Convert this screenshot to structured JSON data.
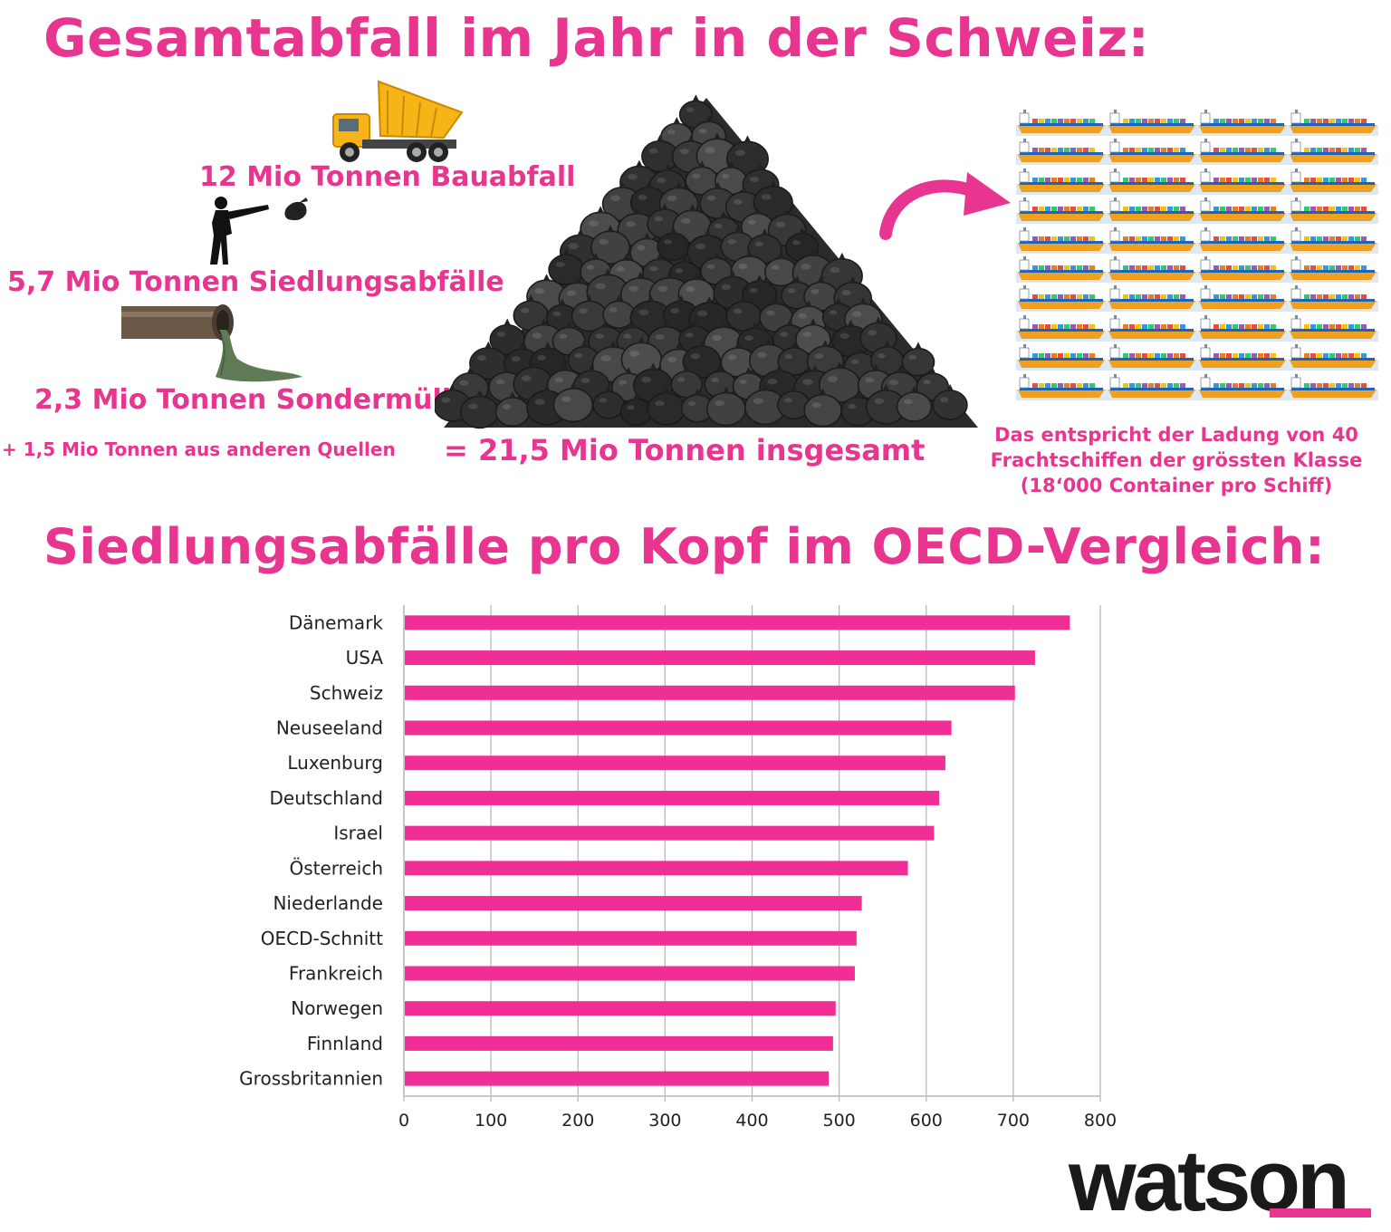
{
  "section1": {
    "title": "Gesamtabfall im Jahr in der Schweiz:",
    "items": [
      {
        "label": "12 Mio Tonnen Bauabfall",
        "icon": "dump-truck-icon"
      },
      {
        "label": "5,7 Mio Tonnen Siedlungsabfälle",
        "icon": "person-throwing-bag-icon"
      },
      {
        "label": "2,3 Mio Tonnen Sondermüll",
        "icon": "sewage-pipe-icon"
      }
    ],
    "other": "+ 1,5 Mio Tonnen aus anderen Quellen",
    "total": "= 21,5 Mio Tonnen insgesamt",
    "ships_note": [
      "Das entspricht der Ladung von 40",
      "Frachtschiffen der grössten Klasse",
      "(18‘000 Container pro Schiff)"
    ],
    "ship_count": 40
  },
  "section2": {
    "title": "Siedlungsabfälle pro Kopf im OECD-Vergleich:"
  },
  "colors": {
    "accent": "#e8358f",
    "bar": "#f02e96",
    "grid": "#b9b9b9",
    "text": "#222222"
  },
  "chart_data": {
    "type": "bar",
    "orientation": "horizontal",
    "categories": [
      "Dänemark",
      "USA",
      "Schweiz",
      "Neuseeland",
      "Luxenburg",
      "Deutschland",
      "Israel",
      "Österreich",
      "Niederlande",
      "OECD-Schnitt",
      "Frankreich",
      "Norwegen",
      "Finnland",
      "Grossbritannien"
    ],
    "values": [
      765,
      725,
      702,
      629,
      622,
      615,
      609,
      579,
      526,
      520,
      518,
      496,
      493,
      488
    ],
    "xlim": [
      0,
      800
    ],
    "xticks": [
      "0",
      "100",
      "200",
      "300",
      "400",
      "500",
      "600",
      "700",
      "800"
    ],
    "grid": true,
    "legend": "none"
  },
  "logo": {
    "text": "watson"
  }
}
